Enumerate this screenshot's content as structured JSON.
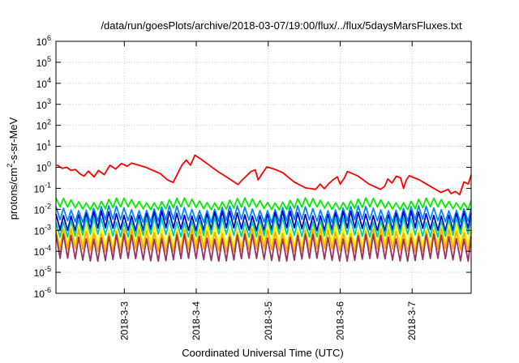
{
  "chart_data": {
    "type": "line",
    "title": "/data/run/goesPlots/archive/2018-03-07/19:00/flux/../flux/5daysMarsFluxes.txt",
    "xlabel": "Coordinated Universal Time (UTC)",
    "ylabel": {
      "prefix": "protons/cm",
      "sup": "2",
      "suffix": "-s-sr-MeV"
    },
    "scale": "log",
    "ylim_exp": [
      -6,
      6
    ],
    "y_ticks": [
      {
        "base": "10",
        "exp": "-6",
        "value": -6
      },
      {
        "base": "10",
        "exp": "-5",
        "value": -5
      },
      {
        "base": "10",
        "exp": "-4",
        "value": -4
      },
      {
        "base": "10",
        "exp": "-3",
        "value": -3
      },
      {
        "base": "10",
        "exp": "-2",
        "value": -2
      },
      {
        "base": "10",
        "exp": "-1",
        "value": -1
      },
      {
        "base": "10",
        "exp": "0",
        "value": 0
      },
      {
        "base": "10",
        "exp": "1",
        "value": 1
      },
      {
        "base": "10",
        "exp": "2",
        "value": 2
      },
      {
        "base": "10",
        "exp": "3",
        "value": 3
      },
      {
        "base": "10",
        "exp": "4",
        "value": 4
      },
      {
        "base": "10",
        "exp": "5",
        "value": 5
      },
      {
        "base": "10",
        "exp": "6",
        "value": 6
      }
    ],
    "x_ticks": [
      {
        "label": "2018-3-3",
        "t": 1.0
      },
      {
        "label": "2018-3-4",
        "t": 2.0
      },
      {
        "label": "2018-3-5",
        "t": 3.0
      },
      {
        "label": "2018-3-6",
        "t": 4.0
      },
      {
        "label": "2018-3-7",
        "t": 5.0
      }
    ],
    "xlim_days": [
      0.05,
      5.82
    ],
    "grid": true,
    "series": [
      {
        "color": "#ff0000",
        "data": [
          [
            0.06,
            0.12
          ],
          [
            0.14,
            -0.05
          ],
          [
            0.2,
            0.0
          ],
          [
            0.26,
            -0.15
          ],
          [
            0.32,
            -0.1
          ],
          [
            0.38,
            -0.3
          ],
          [
            0.44,
            -0.42
          ],
          [
            0.5,
            -0.18
          ],
          [
            0.58,
            -0.45
          ],
          [
            0.64,
            -0.15
          ],
          [
            0.72,
            -0.35
          ],
          [
            0.8,
            0.1
          ],
          [
            0.88,
            -0.08
          ],
          [
            0.96,
            0.18
          ],
          [
            1.04,
            0.05
          ],
          [
            1.1,
            0.2
          ],
          [
            1.3,
            0.0
          ],
          [
            1.5,
            -0.3
          ],
          [
            1.6,
            -0.6
          ],
          [
            1.68,
            -0.72
          ],
          [
            1.74,
            -0.3
          ],
          [
            1.8,
            0.1
          ],
          [
            1.86,
            0.35
          ],
          [
            1.92,
            0.1
          ],
          [
            1.98,
            0.58
          ],
          [
            2.06,
            0.4
          ],
          [
            2.14,
            0.2
          ],
          [
            2.3,
            -0.2
          ],
          [
            2.44,
            -0.5
          ],
          [
            2.58,
            -0.82
          ],
          [
            2.64,
            -0.6
          ],
          [
            2.7,
            -0.4
          ],
          [
            2.76,
            -0.2
          ],
          [
            2.82,
            -0.12
          ],
          [
            2.86,
            -0.6
          ],
          [
            2.92,
            -0.28
          ],
          [
            2.98,
            0.02
          ],
          [
            3.08,
            -0.08
          ],
          [
            3.2,
            -0.25
          ],
          [
            3.36,
            -0.7
          ],
          [
            3.52,
            -0.98
          ],
          [
            3.66,
            -1.05
          ],
          [
            3.72,
            -0.8
          ],
          [
            3.78,
            -1.02
          ],
          [
            3.84,
            -0.78
          ],
          [
            3.9,
            -0.6
          ],
          [
            3.96,
            -0.45
          ],
          [
            4.0,
            -0.8
          ],
          [
            4.06,
            -0.5
          ],
          [
            4.1,
            -0.2
          ],
          [
            4.24,
            -0.4
          ],
          [
            4.4,
            -0.8
          ],
          [
            4.56,
            -1.05
          ],
          [
            4.62,
            -0.9
          ],
          [
            4.66,
            -0.55
          ],
          [
            4.72,
            -0.75
          ],
          [
            4.78,
            -0.42
          ],
          [
            4.84,
            -0.5
          ],
          [
            4.88,
            -1.0
          ],
          [
            4.92,
            -0.6
          ],
          [
            4.96,
            -0.4
          ],
          [
            5.1,
            -0.6
          ],
          [
            5.25,
            -0.9
          ],
          [
            5.4,
            -1.2
          ],
          [
            5.5,
            -1.05
          ],
          [
            5.54,
            -1.25
          ],
          [
            5.6,
            -1.15
          ],
          [
            5.66,
            -1.3
          ],
          [
            5.72,
            -0.7
          ],
          [
            5.78,
            -0.8
          ],
          [
            5.82,
            -0.35
          ]
        ]
      },
      {
        "color": "#00ee00",
        "pattern": {
          "lo": -1.95,
          "hi": -1.58,
          "period": 0.105
        }
      },
      {
        "color": "#0088ff",
        "pattern": {
          "lo": -2.55,
          "hi": -1.95,
          "period": 0.105
        }
      },
      {
        "color": "#0000cc",
        "pattern": {
          "lo": -2.95,
          "hi": -2.2,
          "period": 0.105
        }
      },
      {
        "color": "#00ccaa",
        "pattern": {
          "lo": -3.25,
          "hi": -2.5,
          "period": 0.105
        }
      },
      {
        "color": "#ffff00",
        "pattern": {
          "lo": -3.7,
          "hi": -2.85,
          "period": 0.105
        }
      },
      {
        "color": "#ffaa00",
        "pattern": {
          "lo": -3.95,
          "hi": -3.05,
          "period": 0.105
        }
      },
      {
        "color": "#993366",
        "pattern": {
          "lo": -4.4,
          "hi": -3.3,
          "period": 0.105
        }
      }
    ]
  }
}
